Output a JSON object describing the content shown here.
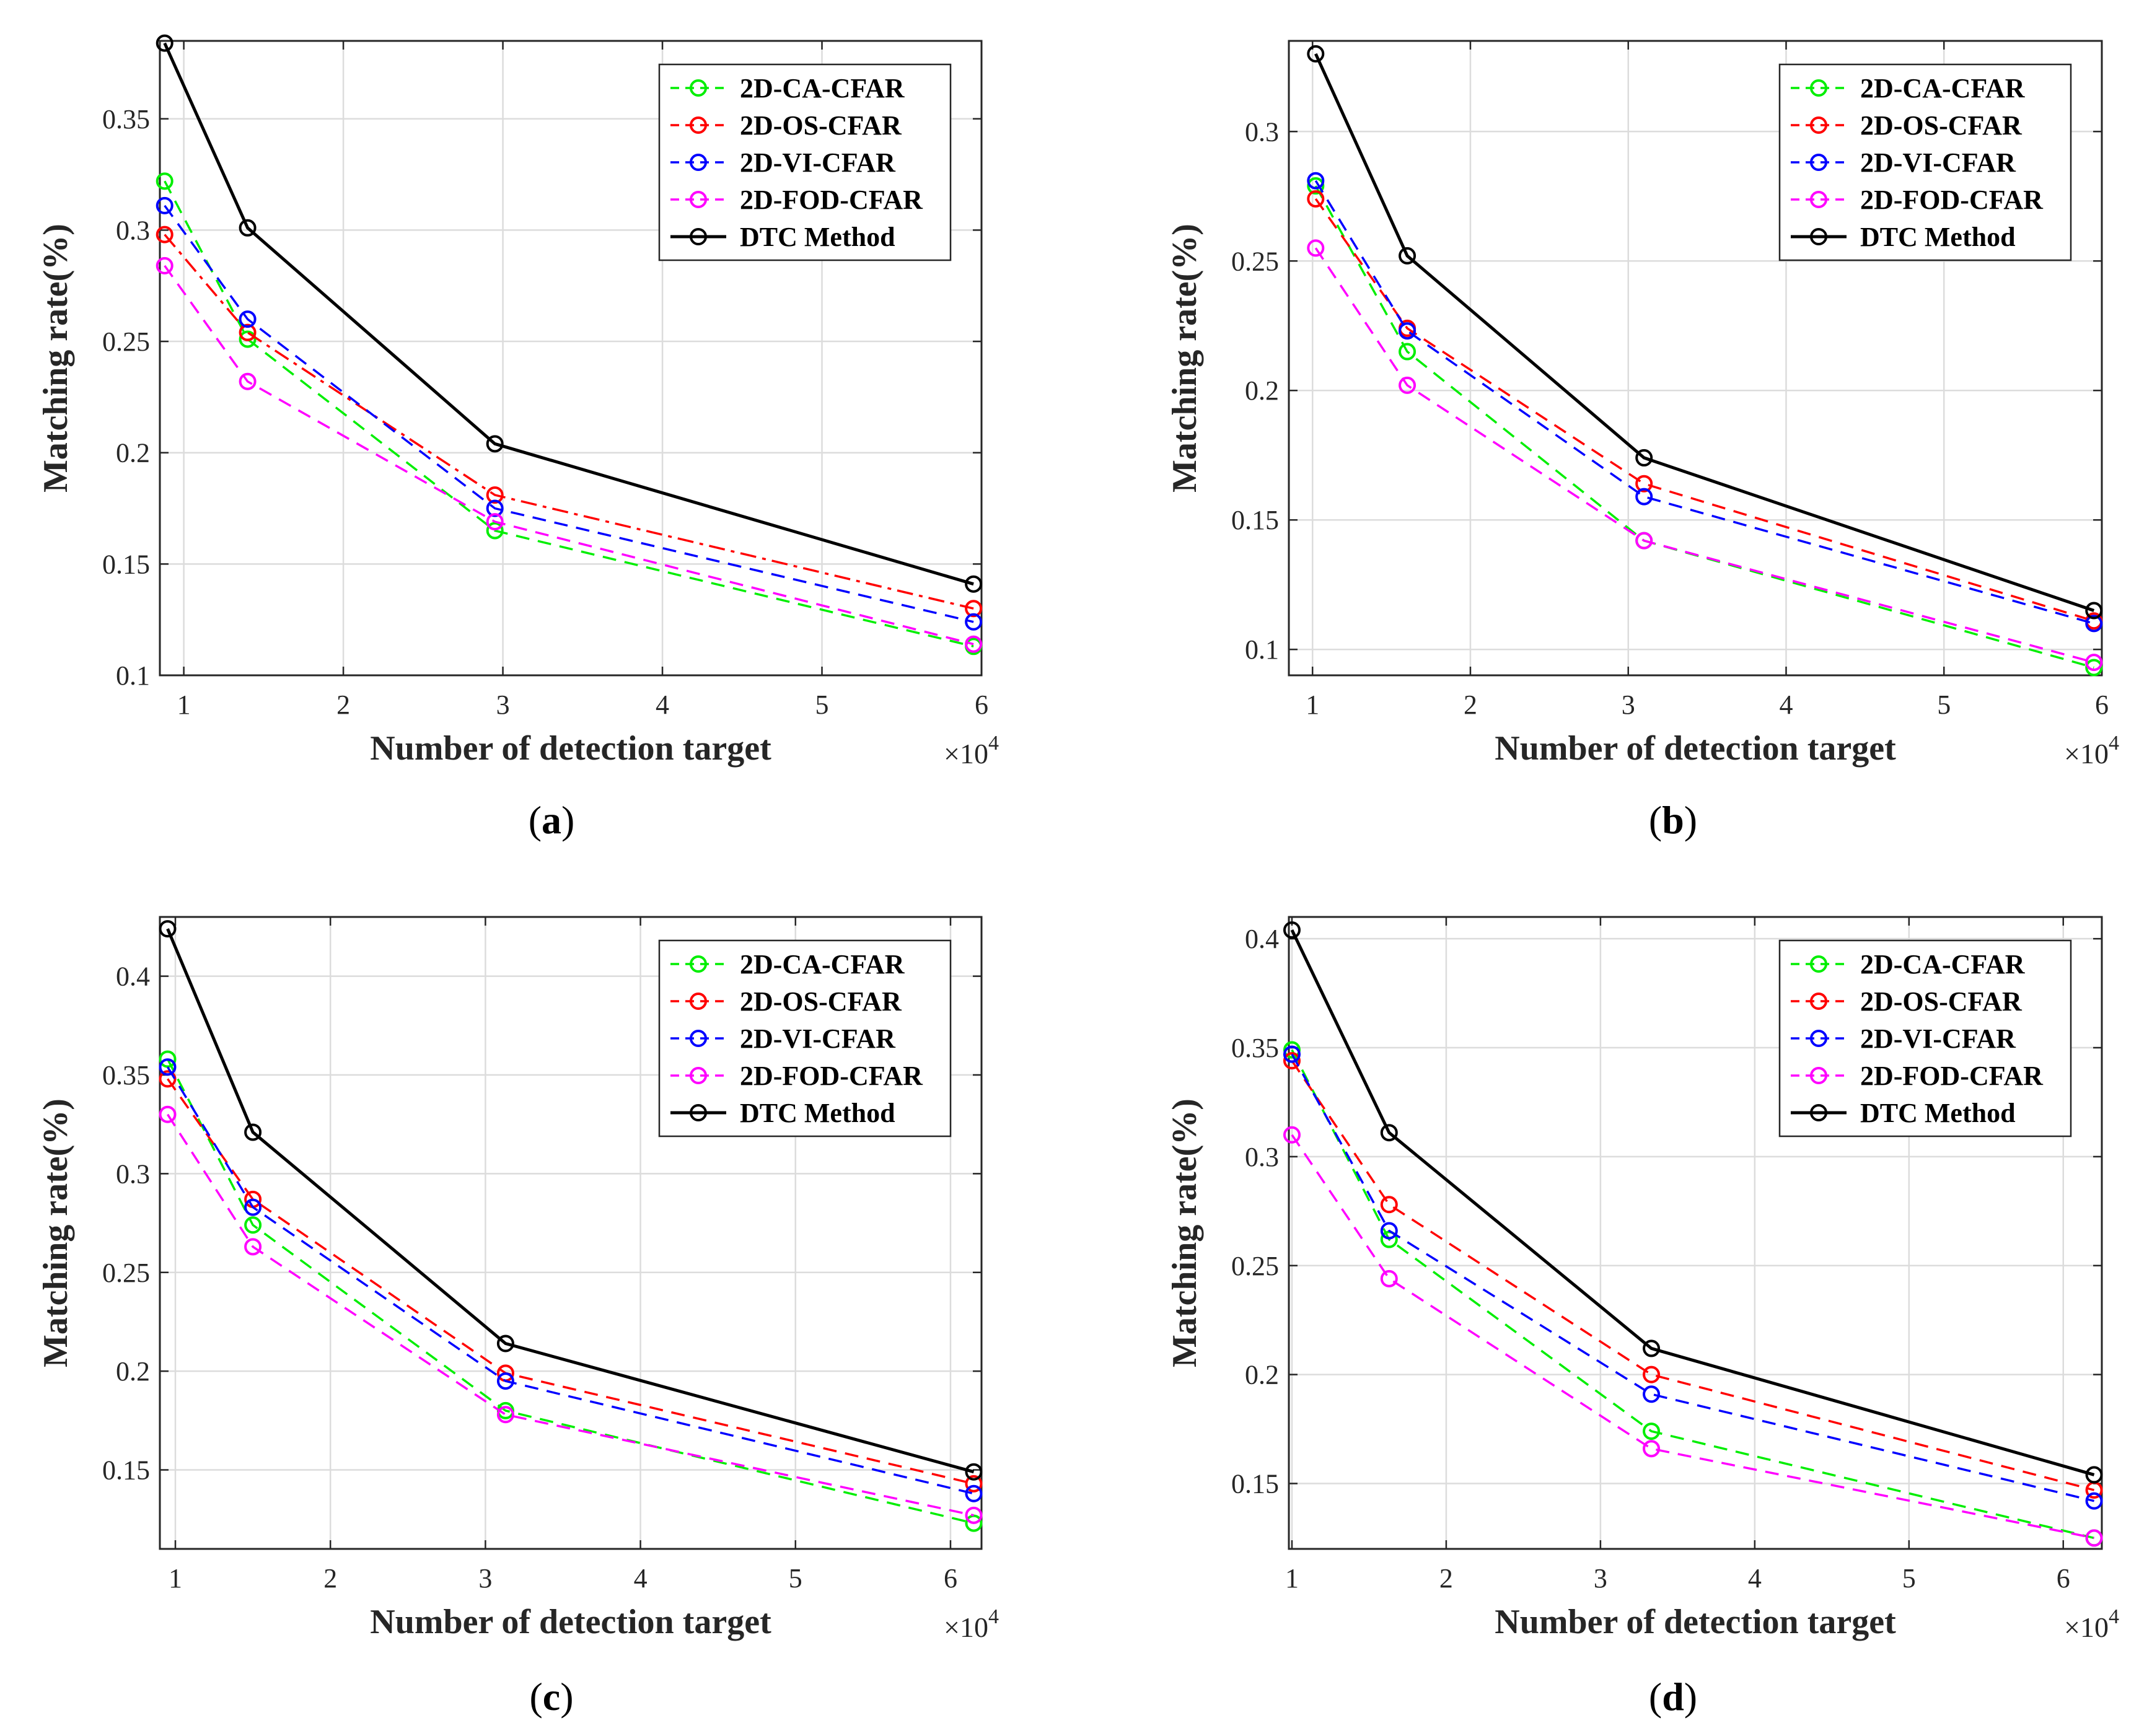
{
  "figure": {
    "exponent_prefix": "×10",
    "exponent_power": "4"
  },
  "chart_data": [
    {
      "type": "line",
      "panel": "a",
      "caption_letter": "a",
      "xlabel": "Number of detection target",
      "ylabel": "Matching rate(%)",
      "x_scale_note": "×10^4",
      "xlim": [
        0.85,
        6.0
      ],
      "ylim": [
        0.1,
        0.385
      ],
      "xticks": [
        1,
        2,
        3,
        4,
        5,
        6
      ],
      "xtick_labels": [
        "1",
        "2",
        "3",
        "4",
        "5",
        "6"
      ],
      "yticks": [
        0.1,
        0.15,
        0.2,
        0.25,
        0.3,
        0.35
      ],
      "ytick_labels": [
        "0.1",
        "0.15",
        "0.2",
        "0.25",
        "0.3",
        "0.35"
      ],
      "grid": true,
      "legend_position": "top-right",
      "x": [
        0.88,
        1.4,
        2.95,
        5.95
      ],
      "series": [
        {
          "name": "2D-CA-CFAR",
          "color": "#00ee00",
          "dash": "dashed",
          "values": [
            0.322,
            0.251,
            0.165,
            0.113
          ]
        },
        {
          "name": "2D-OS-CFAR",
          "color": "#ff0000",
          "dash": "dashdot",
          "values": [
            0.298,
            0.254,
            0.181,
            0.13
          ]
        },
        {
          "name": "2D-VI-CFAR",
          "color": "#0000ff",
          "dash": "dashed",
          "values": [
            0.311,
            0.26,
            0.175,
            0.124
          ]
        },
        {
          "name": "2D-FOD-CFAR",
          "color": "#ff00ff",
          "dash": "dashed",
          "values": [
            0.284,
            0.232,
            0.169,
            0.114
          ]
        },
        {
          "name": "DTC Method",
          "color": "#000000",
          "dash": "solid",
          "values": [
            0.384,
            0.301,
            0.204,
            0.141
          ]
        }
      ]
    },
    {
      "type": "line",
      "panel": "b",
      "caption_letter": "b",
      "xlabel": "Number of detection target",
      "ylabel": "Matching rate(%)",
      "x_scale_note": "×10^4",
      "xlim": [
        0.85,
        6.0
      ],
      "ylim": [
        0.09,
        0.335
      ],
      "xticks": [
        1,
        2,
        3,
        4,
        5,
        6
      ],
      "xtick_labels": [
        "1",
        "2",
        "3",
        "4",
        "5",
        "6"
      ],
      "yticks": [
        0.1,
        0.15,
        0.2,
        0.25,
        0.3
      ],
      "ytick_labels": [
        "0.1",
        "0.15",
        "0.2",
        "0.25",
        "0.3"
      ],
      "grid": true,
      "legend_position": "top-right",
      "x": [
        1.02,
        1.6,
        3.1,
        5.95
      ],
      "series": [
        {
          "name": "2D-CA-CFAR",
          "color": "#00ee00",
          "dash": "dashed",
          "values": [
            0.279,
            0.215,
            0.142,
            0.093
          ]
        },
        {
          "name": "2D-OS-CFAR",
          "color": "#ff0000",
          "dash": "dashed",
          "values": [
            0.274,
            0.224,
            0.164,
            0.111
          ]
        },
        {
          "name": "2D-VI-CFAR",
          "color": "#0000ff",
          "dash": "dashed",
          "values": [
            0.281,
            0.223,
            0.159,
            0.11
          ]
        },
        {
          "name": "2D-FOD-CFAR",
          "color": "#ff00ff",
          "dash": "dashed",
          "values": [
            0.255,
            0.202,
            0.142,
            0.095
          ]
        },
        {
          "name": "DTC Method",
          "color": "#000000",
          "dash": "solid",
          "values": [
            0.33,
            0.252,
            0.174,
            0.115
          ]
        }
      ]
    },
    {
      "type": "line",
      "panel": "c",
      "caption_letter": "c",
      "xlabel": "Number of detection target",
      "ylabel": "Matching rate(%)",
      "x_scale_note": "×10^4",
      "xlim": [
        0.9,
        6.2
      ],
      "ylim": [
        0.11,
        0.43
      ],
      "xticks": [
        1,
        2,
        3,
        4,
        5,
        6
      ],
      "xtick_labels": [
        "1",
        "2",
        "3",
        "4",
        "5",
        "6"
      ],
      "yticks": [
        0.15,
        0.2,
        0.25,
        0.3,
        0.35,
        0.4
      ],
      "ytick_labels": [
        "0.15",
        "0.2",
        "0.25",
        "0.3",
        "0.35",
        "0.4"
      ],
      "grid": true,
      "legend_position": "top-right",
      "x": [
        0.95,
        1.5,
        3.13,
        6.15
      ],
      "series": [
        {
          "name": "2D-CA-CFAR",
          "color": "#00ee00",
          "dash": "dashed",
          "values": [
            0.358,
            0.274,
            0.18,
            0.123
          ]
        },
        {
          "name": "2D-OS-CFAR",
          "color": "#ff0000",
          "dash": "dashed",
          "values": [
            0.348,
            0.287,
            0.199,
            0.143
          ]
        },
        {
          "name": "2D-VI-CFAR",
          "color": "#0000ff",
          "dash": "dashed",
          "values": [
            0.354,
            0.283,
            0.195,
            0.138
          ]
        },
        {
          "name": "2D-FOD-CFAR",
          "color": "#ff00ff",
          "dash": "dashed",
          "values": [
            0.33,
            0.263,
            0.178,
            0.127
          ]
        },
        {
          "name": "DTC Method",
          "color": "#000000",
          "dash": "solid",
          "values": [
            0.424,
            0.321,
            0.214,
            0.149
          ]
        }
      ]
    },
    {
      "type": "line",
      "panel": "d",
      "caption_letter": "d",
      "xlabel": "Number of detection target",
      "ylabel": "Matching rate(%)",
      "x_scale_note": "×10^4",
      "xlim": [
        0.98,
        6.25
      ],
      "ylim": [
        0.12,
        0.41
      ],
      "xticks": [
        1,
        2,
        3,
        4,
        5,
        6
      ],
      "xtick_labels": [
        "1",
        "2",
        "3",
        "4",
        "5",
        "6"
      ],
      "yticks": [
        0.15,
        0.2,
        0.25,
        0.3,
        0.35,
        0.4
      ],
      "ytick_labels": [
        "0.15",
        "0.2",
        "0.25",
        "0.3",
        "0.35",
        "0.4"
      ],
      "grid": true,
      "legend_position": "top-right",
      "x": [
        1.0,
        1.63,
        3.33,
        6.2
      ],
      "series": [
        {
          "name": "2D-CA-CFAR",
          "color": "#00ee00",
          "dash": "dashed",
          "values": [
            0.349,
            0.262,
            0.174,
            0.125
          ]
        },
        {
          "name": "2D-OS-CFAR",
          "color": "#ff0000",
          "dash": "dashed",
          "values": [
            0.344,
            0.278,
            0.2,
            0.147
          ]
        },
        {
          "name": "2D-VI-CFAR",
          "color": "#0000ff",
          "dash": "dashed",
          "values": [
            0.347,
            0.266,
            0.191,
            0.142
          ]
        },
        {
          "name": "2D-FOD-CFAR",
          "color": "#ff00ff",
          "dash": "dashed",
          "values": [
            0.31,
            0.244,
            0.166,
            0.125
          ]
        },
        {
          "name": "DTC Method",
          "color": "#000000",
          "dash": "solid",
          "values": [
            0.404,
            0.311,
            0.212,
            0.154
          ]
        }
      ]
    }
  ]
}
